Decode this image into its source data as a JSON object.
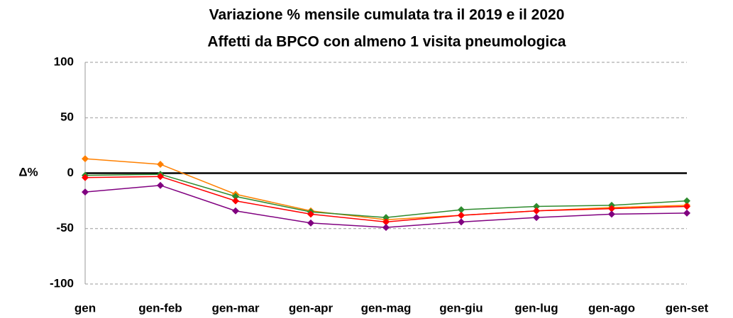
{
  "chart_data": {
    "type": "line",
    "title": "Variazione % mensile cumulata tra il 2019 e il 2020",
    "subtitle": "Affetti da BPCO con almeno 1 visita pneumologica",
    "ylabel": "Δ%",
    "categories": [
      "gen",
      "gen-feb",
      "gen-mar",
      "gen-apr",
      "gen-mag",
      "gen-giu",
      "gen-lug",
      "gen-ago",
      "gen-set"
    ],
    "series": [
      {
        "color": "#ff8000",
        "values": [
          13,
          8,
          -19,
          -34,
          -42,
          -38,
          -34,
          -31,
          -29
        ]
      },
      {
        "color": "#2e8b2e",
        "values": [
          -2,
          -1,
          -21,
          -35,
          -40,
          -33,
          -30,
          -29,
          -25
        ]
      },
      {
        "color": "#ff0000",
        "values": [
          -4,
          -3,
          -25,
          -37,
          -44,
          -38,
          -34,
          -32,
          -30
        ]
      },
      {
        "color": "#800080",
        "values": [
          -17,
          -11,
          -34,
          -45,
          -49,
          -44,
          -40,
          -37,
          -36
        ]
      }
    ],
    "ylim": [
      -100,
      100
    ],
    "yticks": [
      -100,
      -50,
      0,
      50,
      100
    ],
    "grid": true
  }
}
